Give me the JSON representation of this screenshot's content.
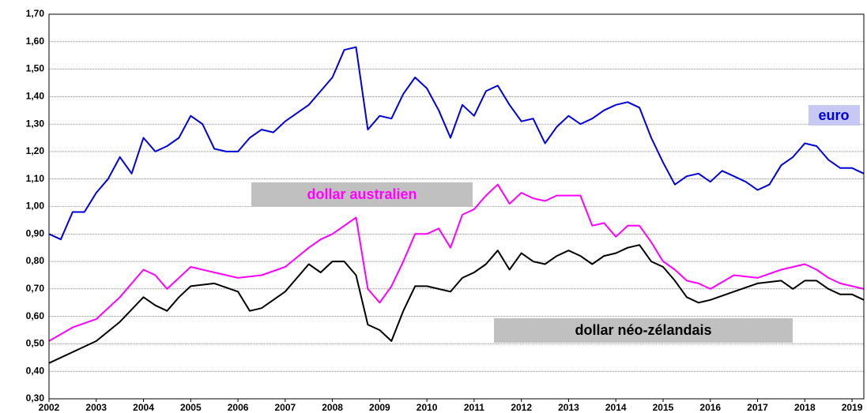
{
  "chart_data": {
    "type": "line",
    "xlim": [
      2002,
      2019.25
    ],
    "xticks": [
      2002,
      2003,
      2004,
      2005,
      2006,
      2007,
      2008,
      2009,
      2010,
      2011,
      2012,
      2013,
      2014,
      2015,
      2016,
      2017,
      2018,
      2019
    ],
    "ylim": [
      0.3,
      1.7
    ],
    "yticks": [
      {
        "value": 0.3,
        "label": "0,30"
      },
      {
        "value": 0.4,
        "label": "0,40"
      },
      {
        "value": 0.5,
        "label": "0,50"
      },
      {
        "value": 0.6,
        "label": "0,60"
      },
      {
        "value": 0.7,
        "label": "0,70"
      },
      {
        "value": 0.8,
        "label": "0,80"
      },
      {
        "value": 0.9,
        "label": "0,90"
      },
      {
        "value": 1.0,
        "label": "1,00"
      },
      {
        "value": 1.1,
        "label": "1,10"
      },
      {
        "value": 1.2,
        "label": "1,20"
      },
      {
        "value": 1.3,
        "label": "1,30"
      },
      {
        "value": 1.4,
        "label": "1,40"
      },
      {
        "value": 1.5,
        "label": "1,50"
      },
      {
        "value": 1.6,
        "label": "1,60"
      },
      {
        "value": 1.7,
        "label": "1,70"
      }
    ],
    "grid": true,
    "series": [
      {
        "name": "euro",
        "color": "#0000dd",
        "x": [
          2002,
          2002.25,
          2002.5,
          2002.75,
          2003,
          2003.25,
          2003.5,
          2003.75,
          2004,
          2004.25,
          2004.5,
          2004.75,
          2005,
          2005.25,
          2005.5,
          2005.75,
          2006,
          2006.25,
          2006.5,
          2006.75,
          2007,
          2007.25,
          2007.5,
          2007.75,
          2008,
          2008.25,
          2008.5,
          2008.75,
          2009,
          2009.25,
          2009.5,
          2009.75,
          2010,
          2010.25,
          2010.5,
          2010.75,
          2011,
          2011.25,
          2011.5,
          2011.75,
          2012,
          2012.25,
          2012.5,
          2012.75,
          2013,
          2013.25,
          2013.5,
          2013.75,
          2014,
          2014.25,
          2014.5,
          2014.75,
          2015,
          2015.25,
          2015.5,
          2015.75,
          2016,
          2016.25,
          2016.5,
          2016.75,
          2017,
          2017.25,
          2017.5,
          2017.75,
          2018,
          2018.25,
          2018.5,
          2018.75,
          2019,
          2019.25
        ],
        "values": [
          0.9,
          0.88,
          0.98,
          0.98,
          1.05,
          1.1,
          1.18,
          1.12,
          1.25,
          1.2,
          1.22,
          1.25,
          1.33,
          1.3,
          1.21,
          1.2,
          1.2,
          1.25,
          1.28,
          1.27,
          1.31,
          1.34,
          1.37,
          1.42,
          1.47,
          1.57,
          1.58,
          1.28,
          1.33,
          1.32,
          1.41,
          1.47,
          1.43,
          1.35,
          1.25,
          1.37,
          1.33,
          1.42,
          1.44,
          1.37,
          1.31,
          1.32,
          1.23,
          1.29,
          1.33,
          1.3,
          1.32,
          1.35,
          1.37,
          1.38,
          1.36,
          1.25,
          1.16,
          1.08,
          1.11,
          1.12,
          1.09,
          1.13,
          1.11,
          1.09,
          1.06,
          1.08,
          1.15,
          1.18,
          1.23,
          1.22,
          1.17,
          1.14,
          1.14,
          1.12
        ]
      },
      {
        "name": "dollar australien",
        "color": "#ff00ff",
        "x": [
          2002,
          2002.5,
          2003,
          2003.5,
          2004,
          2004.25,
          2004.5,
          2004.75,
          2005,
          2005.5,
          2006,
          2006.5,
          2007,
          2007.5,
          2007.75,
          2008,
          2008.5,
          2008.75,
          2009,
          2009.25,
          2009.5,
          2009.75,
          2010,
          2010.25,
          2010.5,
          2010.75,
          2011,
          2011.25,
          2011.5,
          2011.75,
          2012,
          2012.25,
          2012.5,
          2012.75,
          2013,
          2013.25,
          2013.5,
          2013.75,
          2014,
          2014.25,
          2014.5,
          2014.75,
          2015,
          2015.25,
          2015.5,
          2015.75,
          2016,
          2016.5,
          2017,
          2017.5,
          2017.75,
          2018,
          2018.25,
          2018.5,
          2018.75,
          2019,
          2019.25
        ],
        "values": [
          0.51,
          0.56,
          0.59,
          0.67,
          0.77,
          0.75,
          0.7,
          0.74,
          0.78,
          0.76,
          0.74,
          0.75,
          0.78,
          0.85,
          0.88,
          0.9,
          0.96,
          0.7,
          0.65,
          0.71,
          0.8,
          0.9,
          0.9,
          0.92,
          0.85,
          0.97,
          0.99,
          1.04,
          1.08,
          1.01,
          1.05,
          1.03,
          1.02,
          1.04,
          1.04,
          1.04,
          0.93,
          0.94,
          0.89,
          0.93,
          0.93,
          0.87,
          0.8,
          0.77,
          0.73,
          0.72,
          0.7,
          0.75,
          0.74,
          0.77,
          0.78,
          0.79,
          0.77,
          0.74,
          0.72,
          0.71,
          0.7
        ]
      },
      {
        "name": "dollar néo-zélandais",
        "color": "#000000",
        "x": [
          2002,
          2002.5,
          2003,
          2003.5,
          2004,
          2004.25,
          2004.5,
          2004.75,
          2005,
          2005.5,
          2006,
          2006.25,
          2006.5,
          2007,
          2007.5,
          2007.75,
          2008,
          2008.25,
          2008.5,
          2008.75,
          2009,
          2009.25,
          2009.5,
          2009.75,
          2010,
          2010.25,
          2010.5,
          2010.75,
          2011,
          2011.25,
          2011.5,
          2011.75,
          2012,
          2012.25,
          2012.5,
          2012.75,
          2013,
          2013.25,
          2013.5,
          2013.75,
          2014,
          2014.25,
          2014.5,
          2014.75,
          2015,
          2015.25,
          2015.5,
          2015.75,
          2016,
          2016.5,
          2017,
          2017.5,
          2017.75,
          2018,
          2018.25,
          2018.5,
          2018.75,
          2019,
          2019.25
        ],
        "values": [
          0.43,
          0.47,
          0.51,
          0.58,
          0.67,
          0.64,
          0.62,
          0.67,
          0.71,
          0.72,
          0.69,
          0.62,
          0.63,
          0.69,
          0.79,
          0.76,
          0.8,
          0.8,
          0.75,
          0.57,
          0.55,
          0.51,
          0.62,
          0.71,
          0.71,
          0.7,
          0.69,
          0.74,
          0.76,
          0.79,
          0.84,
          0.77,
          0.83,
          0.8,
          0.79,
          0.82,
          0.84,
          0.82,
          0.79,
          0.82,
          0.83,
          0.85,
          0.86,
          0.8,
          0.78,
          0.73,
          0.67,
          0.65,
          0.66,
          0.69,
          0.72,
          0.73,
          0.7,
          0.73,
          0.73,
          0.7,
          0.68,
          0.68,
          0.66
        ]
      }
    ]
  }
}
